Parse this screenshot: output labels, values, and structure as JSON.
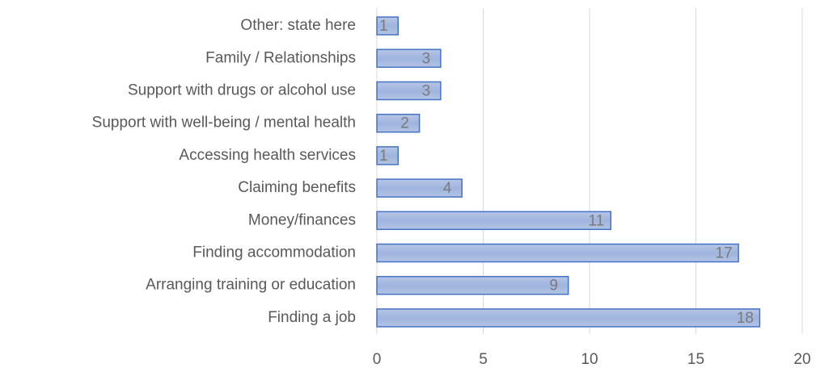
{
  "chart_data": {
    "type": "bar",
    "orientation": "horizontal",
    "categories": [
      "Other: state here",
      "Family / Relationships",
      "Support with drugs or alcohol use",
      "Support with well-being / mental health",
      "Accessing health services",
      "Claiming benefits",
      "Money/finances",
      "Finding accommodation",
      "Arranging training or education",
      "Finding a job"
    ],
    "values": [
      1,
      3,
      3,
      2,
      1,
      4,
      11,
      17,
      9,
      18
    ],
    "color": "#4472c4",
    "xlim": [
      0,
      20
    ],
    "xticks": [
      0,
      5,
      10,
      15,
      20
    ],
    "grid": true
  }
}
